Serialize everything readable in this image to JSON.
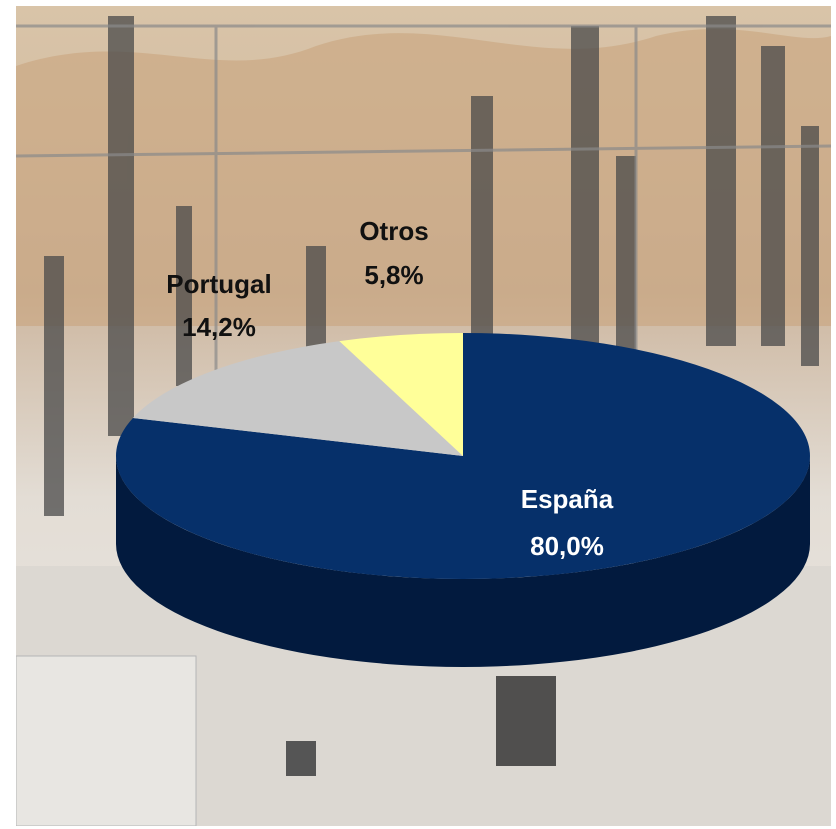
{
  "chart_data": {
    "type": "pie",
    "title": "",
    "style": "3d",
    "slices": [
      {
        "label": "España",
        "value": 80.0,
        "value_text": "80,0%",
        "color": "#06306a",
        "side_color": "#021a3e",
        "label_color": "#ffffff"
      },
      {
        "label": "Portugal",
        "value": 14.2,
        "value_text": "14,2%",
        "color": "#c8c8c8",
        "side_color": "#8f8f8f",
        "label_color": "#111111"
      },
      {
        "label": "Otros",
        "value": 5.8,
        "value_text": "5,8%",
        "color": "#ffff99",
        "side_color": "#b8b86a",
        "label_color": "#111111"
      }
    ]
  },
  "background": {
    "description_icon": "electrical-substation-photo",
    "sky_color": "#e6e1da",
    "hill_color": "#c9a27a",
    "ground_color": "#dcd8d2"
  }
}
